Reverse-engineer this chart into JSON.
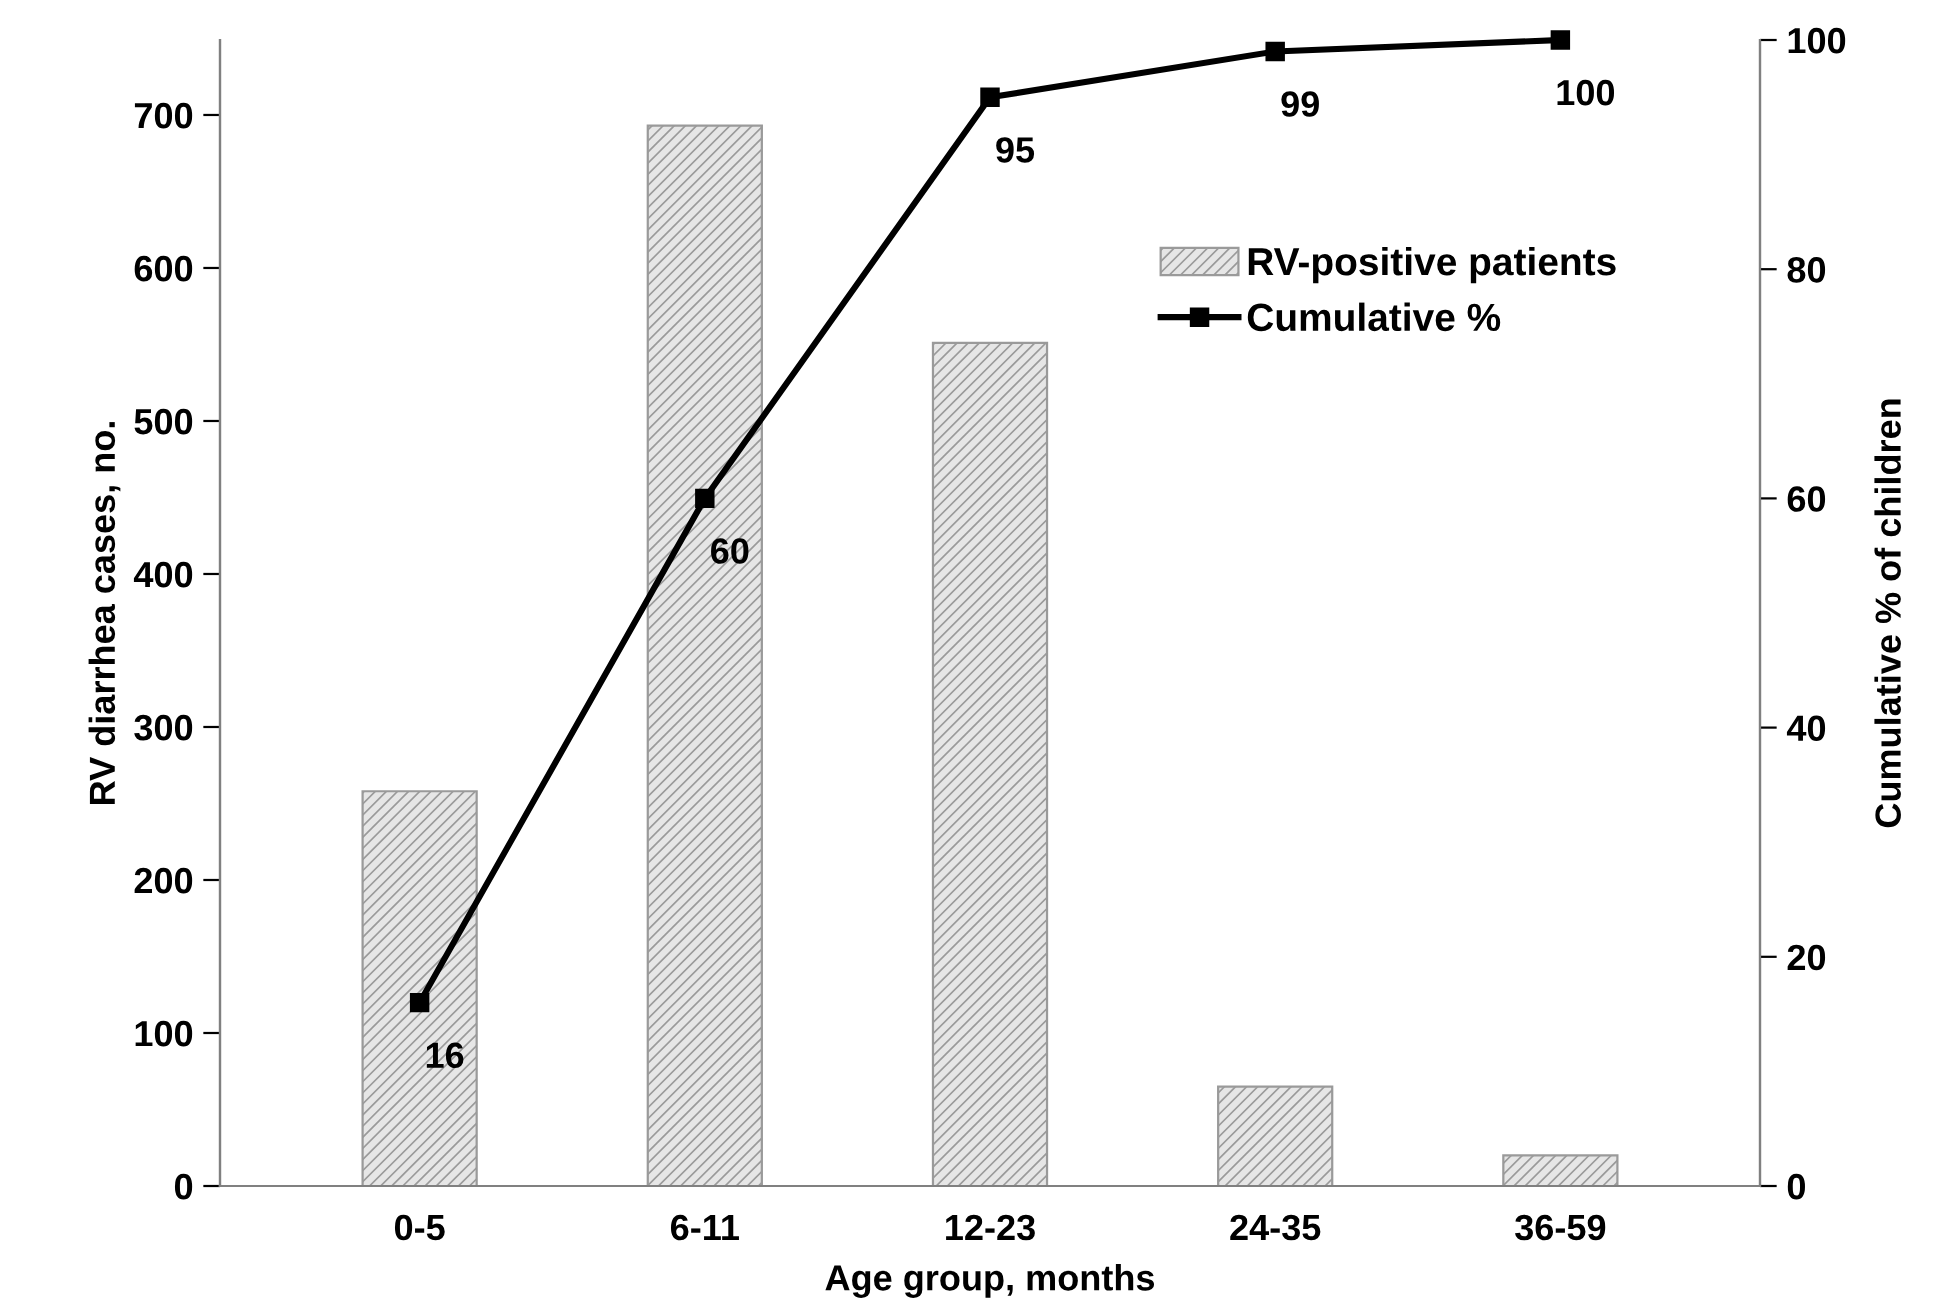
{
  "chart_data": {
    "type": "bar",
    "xlabel": "Age group, months",
    "ylabel": "RV diarrhea cases, no.",
    "y2label": "Cumulative % of children",
    "categories": [
      "0-5",
      "6-11",
      "12-23",
      "24-35",
      "36-59"
    ],
    "series": [
      {
        "name": "RV-positive patients",
        "color": "#9a9a9a",
        "values": [
          258,
          693,
          551,
          65,
          20
        ]
      },
      {
        "name": "Cumulative %",
        "type": "line",
        "axis": "y2",
        "color": "#000000",
        "marker": "square",
        "values": [
          16,
          60,
          95,
          99,
          100
        ],
        "value_labels": [
          "16",
          "60",
          "95",
          "99",
          "100"
        ]
      }
    ],
    "ylim": [
      0,
      749
    ],
    "yticks": [
      0,
      100,
      200,
      300,
      400,
      500,
      600,
      700
    ],
    "y2lim": [
      0,
      100
    ],
    "y2ticks": [
      0,
      20,
      40,
      60,
      80,
      100
    ],
    "grid": false,
    "legend": "top right"
  }
}
